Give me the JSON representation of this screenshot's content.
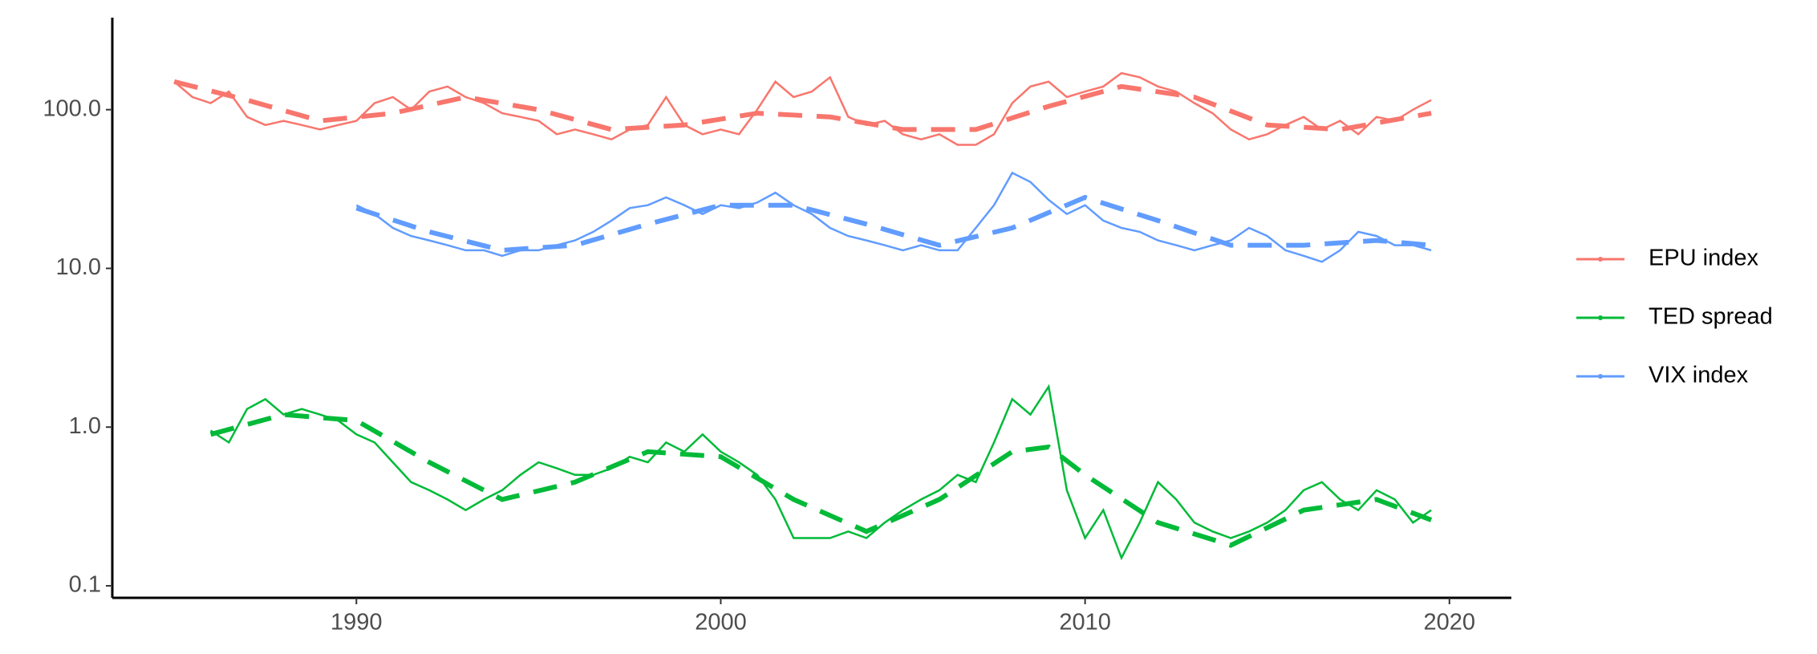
{
  "chart_data": {
    "type": "line",
    "log_y": true,
    "grid": false,
    "legend": "right",
    "x": [
      1985,
      1985.5,
      1986,
      1986.5,
      1987,
      1987.5,
      1988,
      1988.5,
      1989,
      1989.5,
      1990,
      1990.5,
      1991,
      1991.5,
      1992,
      1992.5,
      1993,
      1993.5,
      1994,
      1994.5,
      1995,
      1995.5,
      1996,
      1996.5,
      1997,
      1997.5,
      1998,
      1998.5,
      1999,
      1999.5,
      2000,
      2000.5,
      2001,
      2001.5,
      2002,
      2002.5,
      2003,
      2003.5,
      2004,
      2004.5,
      2005,
      2005.5,
      2006,
      2006.5,
      2007,
      2007.5,
      2008,
      2008.5,
      2009,
      2009.5,
      2010,
      2010.5,
      2011,
      2011.5,
      2012,
      2012.5,
      2013,
      2013.5,
      2014,
      2014.5,
      2015,
      2015.5,
      2016,
      2016.5,
      2017,
      2017.5,
      2018,
      2018.5,
      2019,
      2019.5
    ],
    "series": [
      {
        "name": "EPU index",
        "color": "#F8766D",
        "values": [
          150,
          120,
          110,
          130,
          90,
          80,
          85,
          80,
          75,
          80,
          85,
          110,
          120,
          100,
          130,
          140,
          120,
          110,
          95,
          90,
          85,
          70,
          75,
          70,
          65,
          75,
          80,
          120,
          80,
          70,
          75,
          70,
          100,
          150,
          120,
          130,
          160,
          90,
          80,
          85,
          70,
          65,
          70,
          60,
          60,
          70,
          110,
          140,
          150,
          120,
          130,
          140,
          170,
          160,
          140,
          130,
          110,
          95,
          75,
          65,
          70,
          80,
          90,
          75,
          85,
          70,
          90,
          85,
          100,
          115
        ],
        "trend": {
          "x": [
            1985,
            1987,
            1989,
            1991,
            1993,
            1995,
            1997,
            1999,
            2001,
            2003,
            2005,
            2007,
            2009,
            2011,
            2013,
            2015,
            2017,
            2019.5
          ],
          "values": [
            150,
            115,
            85,
            95,
            120,
            100,
            75,
            80,
            95,
            90,
            75,
            75,
            105,
            140,
            120,
            80,
            75,
            95
          ]
        }
      },
      {
        "name": "TED spread",
        "color": "#00BA38",
        "values": [
          null,
          null,
          0.95,
          0.8,
          1.3,
          1.5,
          1.2,
          1.3,
          1.2,
          1.1,
          0.9,
          0.8,
          0.6,
          0.45,
          0.4,
          0.35,
          0.3,
          0.35,
          0.4,
          0.5,
          0.6,
          0.55,
          0.5,
          0.5,
          0.55,
          0.65,
          0.6,
          0.8,
          0.7,
          0.9,
          0.7,
          0.6,
          0.5,
          0.35,
          0.2,
          0.2,
          0.2,
          0.22,
          0.2,
          0.25,
          0.3,
          0.35,
          0.4,
          0.5,
          0.45,
          0.8,
          1.5,
          1.2,
          1.8,
          0.4,
          0.2,
          0.3,
          0.15,
          0.25,
          0.45,
          0.35,
          0.25,
          0.22,
          0.2,
          0.22,
          0.25,
          0.3,
          0.4,
          0.45,
          0.35,
          0.3,
          0.4,
          0.35,
          0.25,
          0.3
        ],
        "trend": {
          "x": [
            1986,
            1988,
            1990,
            1992,
            1994,
            1996,
            1998,
            2000,
            2002,
            2004,
            2006,
            2008,
            2009,
            2010,
            2012,
            2014,
            2016,
            2018,
            2019.5
          ],
          "values": [
            0.9,
            1.2,
            1.1,
            0.6,
            0.35,
            0.45,
            0.7,
            0.65,
            0.35,
            0.22,
            0.35,
            0.7,
            0.75,
            0.5,
            0.25,
            0.18,
            0.3,
            0.35,
            0.26
          ]
        }
      },
      {
        "name": "VIX index",
        "color": "#619CFF",
        "values": [
          null,
          null,
          null,
          null,
          null,
          null,
          null,
          null,
          null,
          null,
          25,
          22,
          18,
          16,
          15,
          14,
          13,
          13,
          12,
          13,
          13,
          14,
          15,
          17,
          20,
          24,
          25,
          28,
          25,
          22,
          25,
          24,
          26,
          30,
          25,
          22,
          18,
          16,
          15,
          14,
          13,
          14,
          13,
          13,
          18,
          25,
          40,
          35,
          27,
          22,
          25,
          20,
          18,
          17,
          15,
          14,
          13,
          14,
          15,
          18,
          16,
          13,
          12,
          11,
          13,
          17,
          16,
          14,
          14,
          13
        ],
        "trend": {
          "x": [
            1990,
            1992,
            1994,
            1996,
            1998,
            2000,
            2002,
            2004,
            2006,
            2008,
            2010,
            2012,
            2014,
            2016,
            2018,
            2019.5
          ],
          "values": [
            24,
            17,
            13,
            14,
            19,
            25,
            25,
            19,
            14,
            18,
            28,
            20,
            14,
            14,
            15,
            14
          ]
        }
      }
    ],
    "xlim": [
      1983.3,
      2021.7
    ],
    "xticks": [
      1990,
      2000,
      2010,
      2020
    ],
    "ylim": [
      0.084,
      380
    ],
    "yticks": [
      {
        "value": 0.1,
        "label": "0.1"
      },
      {
        "value": 1,
        "label": "1.0"
      },
      {
        "value": 10,
        "label": "10.0"
      },
      {
        "value": 100,
        "label": "100.0"
      }
    ]
  }
}
